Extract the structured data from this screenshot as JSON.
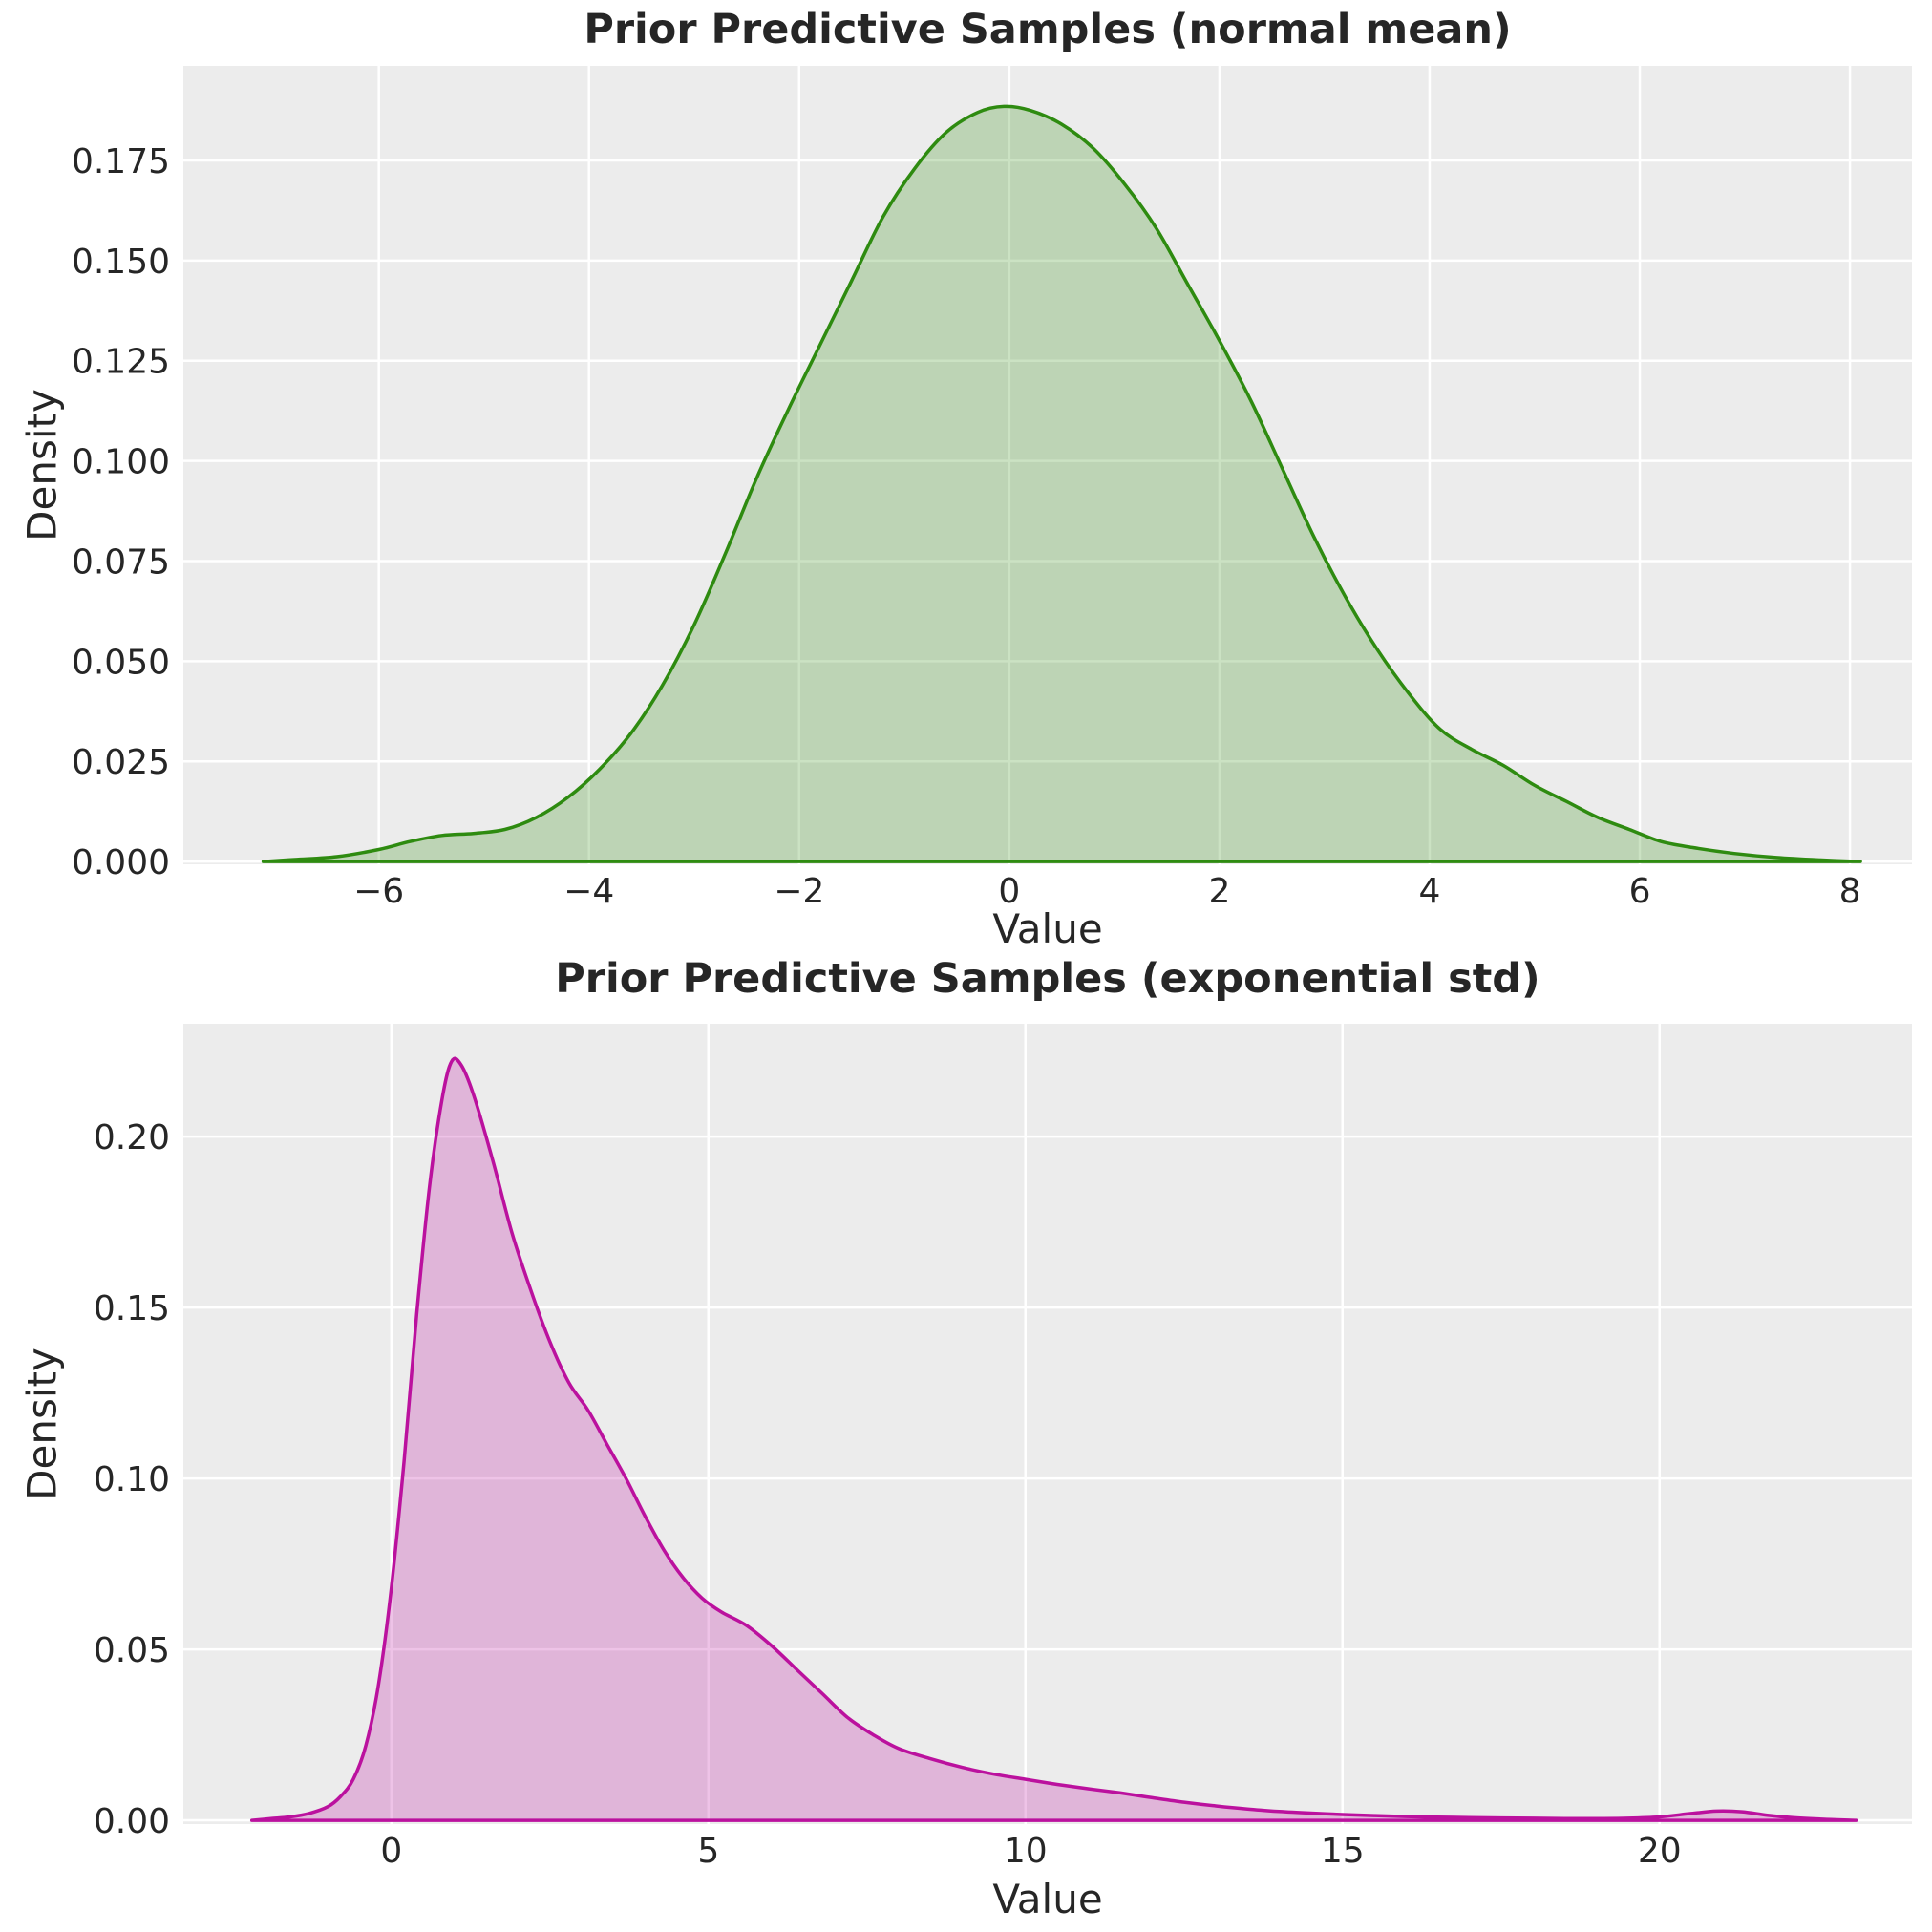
{
  "figure": {
    "background": "#ffffff",
    "plot_background": "#ececec",
    "grid_color": "#ffffff",
    "text_color": "#262626",
    "tick_font_px": 36,
    "grid_width": 2.5,
    "line_width": 3.5
  },
  "chart_data": [
    {
      "type": "area",
      "id": "normal-mean",
      "title": "Prior Predictive Samples (normal mean)",
      "xlabel": "Value",
      "ylabel": "Density",
      "legend": "none",
      "grid": "on",
      "line_color": "#2e8b10",
      "fill_color": "rgba(46,139,16,0.25)",
      "xlim": [
        -7.86,
        8.59
      ],
      "ylim": [
        -0.0007,
        0.1986
      ],
      "x_ticks": [
        {
          "v": -6,
          "label": "−6"
        },
        {
          "v": -4,
          "label": "−4"
        },
        {
          "v": -2,
          "label": "−2"
        },
        {
          "v": 0,
          "label": "0"
        },
        {
          "v": 2,
          "label": "2"
        },
        {
          "v": 4,
          "label": "4"
        },
        {
          "v": 6,
          "label": "6"
        },
        {
          "v": 8,
          "label": "8"
        }
      ],
      "y_ticks": [
        {
          "v": 0.0,
          "label": "0.000"
        },
        {
          "v": 0.025,
          "label": "0.025"
        },
        {
          "v": 0.05,
          "label": "0.050"
        },
        {
          "v": 0.075,
          "label": "0.075"
        },
        {
          "v": 0.1,
          "label": "0.100"
        },
        {
          "v": 0.125,
          "label": "0.125"
        },
        {
          "v": 0.15,
          "label": "0.150"
        },
        {
          "v": 0.175,
          "label": "0.175"
        }
      ],
      "kde": [
        [
          -7.1,
          0
        ],
        [
          -6.8,
          0.0005
        ],
        [
          -6.4,
          0.0012
        ],
        [
          -6.0,
          0.003
        ],
        [
          -5.7,
          0.005
        ],
        [
          -5.4,
          0.0065
        ],
        [
          -5.1,
          0.007
        ],
        [
          -4.8,
          0.008
        ],
        [
          -4.5,
          0.011
        ],
        [
          -4.2,
          0.016
        ],
        [
          -3.9,
          0.023
        ],
        [
          -3.6,
          0.032
        ],
        [
          -3.3,
          0.044
        ],
        [
          -3.0,
          0.059
        ],
        [
          -2.7,
          0.077
        ],
        [
          -2.4,
          0.096
        ],
        [
          -2.1,
          0.113
        ],
        [
          -1.8,
          0.129
        ],
        [
          -1.5,
          0.145
        ],
        [
          -1.2,
          0.161
        ],
        [
          -0.9,
          0.173
        ],
        [
          -0.6,
          0.182
        ],
        [
          -0.3,
          0.187
        ],
        [
          -0.05,
          0.1885
        ],
        [
          0.2,
          0.1875
        ],
        [
          0.5,
          0.184
        ],
        [
          0.8,
          0.178
        ],
        [
          1.1,
          0.169
        ],
        [
          1.4,
          0.158
        ],
        [
          1.7,
          0.144
        ],
        [
          2.0,
          0.13
        ],
        [
          2.3,
          0.115
        ],
        [
          2.6,
          0.098
        ],
        [
          2.9,
          0.081
        ],
        [
          3.2,
          0.066
        ],
        [
          3.5,
          0.053
        ],
        [
          3.8,
          0.042
        ],
        [
          4.1,
          0.033
        ],
        [
          4.4,
          0.028
        ],
        [
          4.7,
          0.024
        ],
        [
          5.0,
          0.019
        ],
        [
          5.3,
          0.015
        ],
        [
          5.6,
          0.011
        ],
        [
          5.9,
          0.008
        ],
        [
          6.2,
          0.005
        ],
        [
          6.5,
          0.0035
        ],
        [
          6.9,
          0.002
        ],
        [
          7.3,
          0.001
        ],
        [
          7.7,
          0.0004
        ],
        [
          8.1,
          0
        ]
      ]
    },
    {
      "type": "area",
      "id": "exponential-std",
      "title": "Prior Predictive Samples (exponential std)",
      "xlabel": "Value",
      "ylabel": "Density",
      "legend": "none",
      "grid": "on",
      "line_color": "#bb119e",
      "fill_color": "rgba(187,17,158,0.25)",
      "xlim": [
        -3.28,
        23.98
      ],
      "ylim": [
        -0.0011,
        0.233
      ],
      "x_ticks": [
        {
          "v": 0,
          "label": "0"
        },
        {
          "v": 5,
          "label": "5"
        },
        {
          "v": 10,
          "label": "10"
        },
        {
          "v": 15,
          "label": "15"
        },
        {
          "v": 20,
          "label": "20"
        }
      ],
      "y_ticks": [
        {
          "v": 0.0,
          "label": "0.00"
        },
        {
          "v": 0.05,
          "label": "0.05"
        },
        {
          "v": 0.1,
          "label": "0.10"
        },
        {
          "v": 0.15,
          "label": "0.15"
        },
        {
          "v": 0.2,
          "label": "0.20"
        }
      ],
      "kde": [
        [
          -2.2,
          0
        ],
        [
          -1.9,
          0.0005
        ],
        [
          -1.6,
          0.001
        ],
        [
          -1.3,
          0.002
        ],
        [
          -1.0,
          0.004
        ],
        [
          -0.8,
          0.007
        ],
        [
          -0.6,
          0.012
        ],
        [
          -0.4,
          0.022
        ],
        [
          -0.2,
          0.04
        ],
        [
          0.0,
          0.068
        ],
        [
          0.2,
          0.105
        ],
        [
          0.4,
          0.148
        ],
        [
          0.6,
          0.185
        ],
        [
          0.8,
          0.211
        ],
        [
          0.95,
          0.222
        ],
        [
          1.1,
          0.221
        ],
        [
          1.3,
          0.212
        ],
        [
          1.6,
          0.193
        ],
        [
          1.9,
          0.172
        ],
        [
          2.2,
          0.155
        ],
        [
          2.5,
          0.14
        ],
        [
          2.8,
          0.128
        ],
        [
          3.1,
          0.12
        ],
        [
          3.4,
          0.11
        ],
        [
          3.7,
          0.1
        ],
        [
          4.0,
          0.089
        ],
        [
          4.3,
          0.079
        ],
        [
          4.6,
          0.071
        ],
        [
          4.9,
          0.065
        ],
        [
          5.2,
          0.061
        ],
        [
          5.6,
          0.057
        ],
        [
          6.0,
          0.051
        ],
        [
          6.4,
          0.044
        ],
        [
          6.8,
          0.037
        ],
        [
          7.2,
          0.03
        ],
        [
          7.6,
          0.025
        ],
        [
          8.0,
          0.021
        ],
        [
          8.5,
          0.018
        ],
        [
          9.0,
          0.0155
        ],
        [
          9.5,
          0.0135
        ],
        [
          10.0,
          0.012
        ],
        [
          10.5,
          0.0105
        ],
        [
          11.0,
          0.0092
        ],
        [
          11.5,
          0.008
        ],
        [
          12.0,
          0.0066
        ],
        [
          12.5,
          0.0053
        ],
        [
          13.0,
          0.0042
        ],
        [
          13.5,
          0.0033
        ],
        [
          14.0,
          0.0026
        ],
        [
          14.5,
          0.0021
        ],
        [
          15.0,
          0.0017
        ],
        [
          15.5,
          0.0014
        ],
        [
          16.0,
          0.0011
        ],
        [
          16.5,
          0.0009
        ],
        [
          17.0,
          0.0008
        ],
        [
          17.5,
          0.0007
        ],
        [
          18.0,
          0.0006
        ],
        [
          18.5,
          0.0005
        ],
        [
          19.0,
          0.0005
        ],
        [
          19.5,
          0.0006
        ],
        [
          20.0,
          0.001
        ],
        [
          20.5,
          0.002
        ],
        [
          20.9,
          0.0027
        ],
        [
          21.3,
          0.0025
        ],
        [
          21.7,
          0.0015
        ],
        [
          22.1,
          0.0008
        ],
        [
          22.6,
          0.0003
        ],
        [
          23.1,
          0
        ]
      ]
    }
  ]
}
